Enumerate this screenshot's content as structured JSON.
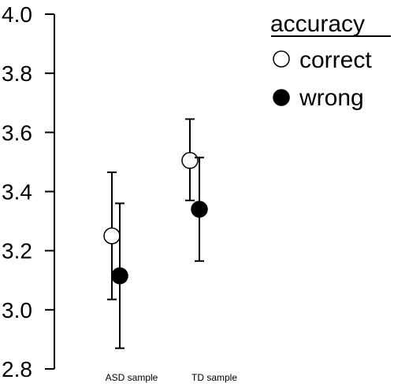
{
  "chart_data": {
    "type": "scatter",
    "title": "",
    "xlabel": "",
    "ylabel": "",
    "ylim": [
      2.8,
      4.0
    ],
    "yticks": [
      2.8,
      3.0,
      3.2,
      3.4,
      3.6,
      3.8,
      4.0
    ],
    "ytick_labels": [
      "2.8",
      "3.0",
      "3.2",
      "3.4",
      "3.6",
      "3.8",
      "4.0"
    ],
    "grid": false,
    "categories": [
      "ASD sample",
      "TD sample"
    ],
    "legend": {
      "title": "accuracy",
      "placement": "top-right"
    },
    "series": [
      {
        "name": "correct",
        "marker": "open-circle",
        "color": "#000000",
        "values": [
          3.25,
          3.505
        ],
        "err_low": [
          3.035,
          3.37
        ],
        "err_high": [
          3.465,
          3.645
        ]
      },
      {
        "name": "wrong",
        "marker": "filled-circle",
        "color": "#000000",
        "values": [
          3.115,
          3.34
        ],
        "err_low": [
          2.87,
          3.165
        ],
        "err_high": [
          3.36,
          3.515
        ]
      }
    ]
  }
}
